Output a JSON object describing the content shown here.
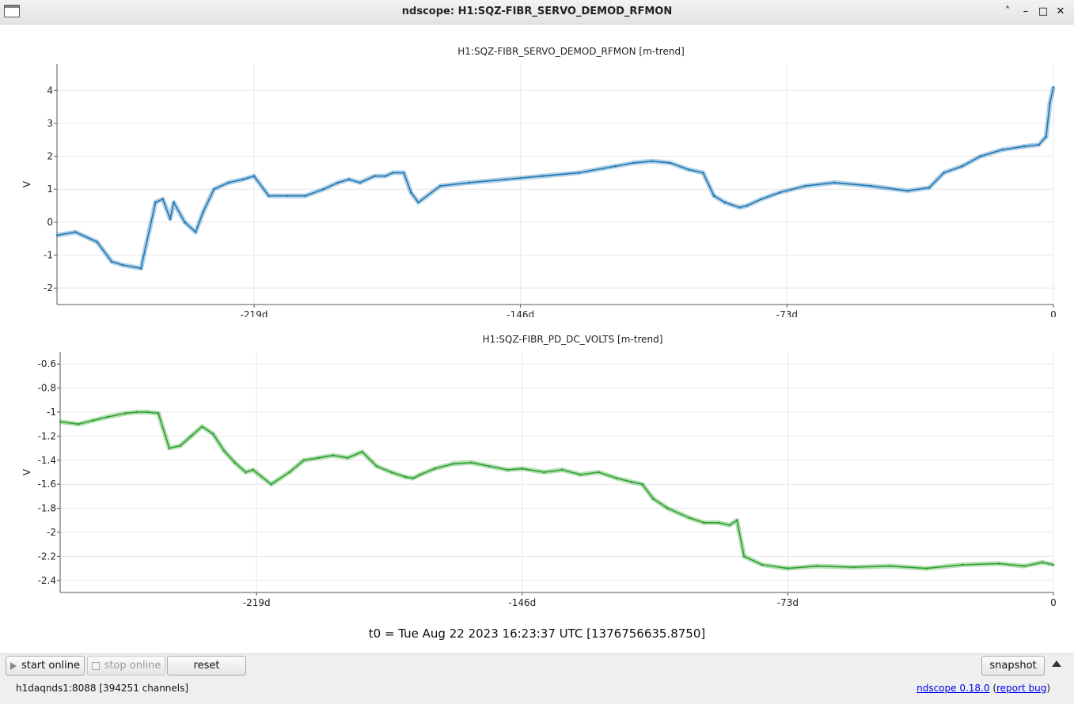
{
  "window": {
    "title": "ndscope: H1:SQZ-FIBR_SERVO_DEMOD_RFMON"
  },
  "colors": {
    "series1": "#1f77b4",
    "series2": "#2ca02c"
  },
  "icons": [
    "app-window-icon",
    "chevron-up-icon",
    "minimize-icon",
    "maximize-icon",
    "close-icon",
    "play-icon",
    "stop-icon",
    "collapse-triangle-icon"
  ],
  "chart_data": [
    {
      "type": "line",
      "title": "H1:SQZ-FIBR_SERVO_DEMOD_RFMON [m-trend]",
      "ylabel": "V",
      "xlabel": "",
      "x_unit": "days",
      "xlim": [
        -273,
        0
      ],
      "ylim": [
        -2.5,
        4.8
      ],
      "x_ticks": [
        -219,
        -146,
        -73,
        0
      ],
      "x_tick_labels": [
        "-219d",
        "-146d",
        "-73d",
        "0"
      ],
      "y_ticks": [
        -2,
        -1,
        0,
        1,
        2,
        3,
        4
      ],
      "y_tick_labels": [
        "-2",
        "-1",
        "0",
        "1",
        "2",
        "3",
        "4"
      ],
      "grid": true,
      "color": "#1f77b4",
      "series": [
        {
          "x": [
            -273,
            -268,
            -262,
            -258,
            -255,
            -250,
            -246,
            -244,
            -242,
            -241,
            -238,
            -235,
            -233,
            -230,
            -226,
            -222,
            -219,
            -215,
            -210,
            -205,
            -200,
            -196,
            -193,
            -190,
            -186,
            -183,
            -181,
            -178,
            -176,
            -174,
            -168,
            -160,
            -150,
            -140,
            -130,
            -120,
            -115,
            -110,
            -105,
            -100,
            -96,
            -93,
            -90,
            -86,
            -84,
            -80,
            -75,
            -68,
            -60,
            -50,
            -40,
            -34,
            -30,
            -25,
            -20,
            -14,
            -8,
            -4,
            -2,
            -1,
            0
          ],
          "y": [
            -0.4,
            -0.3,
            -0.6,
            -1.2,
            -1.3,
            -1.4,
            0.6,
            0.7,
            0.1,
            0.6,
            0.0,
            -0.3,
            0.3,
            1.0,
            1.2,
            1.3,
            1.4,
            0.8,
            0.8,
            0.8,
            1.0,
            1.2,
            1.3,
            1.2,
            1.4,
            1.4,
            1.5,
            1.5,
            0.9,
            0.6,
            1.1,
            1.2,
            1.3,
            1.4,
            1.5,
            1.7,
            1.8,
            1.85,
            1.8,
            1.6,
            1.5,
            0.8,
            0.6,
            0.45,
            0.5,
            0.7,
            0.9,
            1.1,
            1.2,
            1.1,
            0.95,
            1.05,
            1.5,
            1.7,
            2.0,
            2.2,
            2.3,
            2.35,
            2.6,
            3.6,
            4.1
          ]
        }
      ]
    },
    {
      "type": "line",
      "title": "H1:SQZ-FIBR_PD_DC_VOLTS [m-trend]",
      "ylabel": "V",
      "xlabel": "",
      "x_unit": "days",
      "xlim": [
        -273,
        0
      ],
      "ylim": [
        -2.5,
        -0.5
      ],
      "x_ticks": [
        -219,
        -146,
        -73,
        0
      ],
      "x_tick_labels": [
        "-219d",
        "-146d",
        "-73d",
        "0"
      ],
      "y_ticks": [
        -2.4,
        -2.2,
        -2.0,
        -1.8,
        -1.6,
        -1.4,
        -1.2,
        -1.0,
        -0.8,
        -0.6
      ],
      "y_tick_labels": [
        "-2.4",
        "-2.2",
        "-2",
        "-1.8",
        "-1.6",
        "-1.4",
        "-1.2",
        "-1",
        "-0.8",
        "-0.6"
      ],
      "grid": true,
      "color": "#2ca02c",
      "series": [
        {
          "x": [
            -273,
            -268,
            -264,
            -260,
            -255,
            -252,
            -249,
            -246,
            -243,
            -240,
            -237,
            -234,
            -231,
            -228,
            -225,
            -222,
            -220,
            -215,
            -210,
            -206,
            -202,
            -198,
            -194,
            -190,
            -186,
            -182,
            -178,
            -176,
            -174,
            -170,
            -165,
            -160,
            -155,
            -150,
            -146,
            -140,
            -135,
            -130,
            -125,
            -120,
            -116,
            -113,
            -110,
            -106,
            -100,
            -96,
            -92,
            -89,
            -87,
            -85,
            -80,
            -73,
            -65,
            -55,
            -45,
            -35,
            -25,
            -15,
            -8,
            -3,
            0
          ],
          "y": [
            -1.08,
            -1.1,
            -1.07,
            -1.04,
            -1.01,
            -1.0,
            -1.0,
            -1.01,
            -1.3,
            -1.28,
            -1.2,
            -1.12,
            -1.18,
            -1.32,
            -1.42,
            -1.5,
            -1.48,
            -1.6,
            -1.5,
            -1.4,
            -1.38,
            -1.36,
            -1.38,
            -1.33,
            -1.45,
            -1.5,
            -1.54,
            -1.55,
            -1.52,
            -1.47,
            -1.43,
            -1.42,
            -1.45,
            -1.48,
            -1.47,
            -1.5,
            -1.48,
            -1.52,
            -1.5,
            -1.55,
            -1.58,
            -1.6,
            -1.72,
            -1.8,
            -1.88,
            -1.92,
            -1.92,
            -1.94,
            -1.9,
            -2.2,
            -2.27,
            -2.3,
            -2.28,
            -2.29,
            -2.28,
            -2.3,
            -2.27,
            -2.26,
            -2.28,
            -2.25,
            -2.27
          ]
        }
      ]
    }
  ],
  "t0": "t0 = Tue Aug 22 2023 16:23:37 UTC [1376756635.8750]",
  "controls": {
    "start_online": "start online",
    "stop_online": "stop online",
    "reset": "reset",
    "snapshot": "snapshot"
  },
  "status": {
    "server": "h1daqnds1:8088  [394251 channels]",
    "version_link": "ndscope 0.18.0",
    "report_link": "report bug",
    "open_paren": " (",
    "close_paren": ")"
  }
}
